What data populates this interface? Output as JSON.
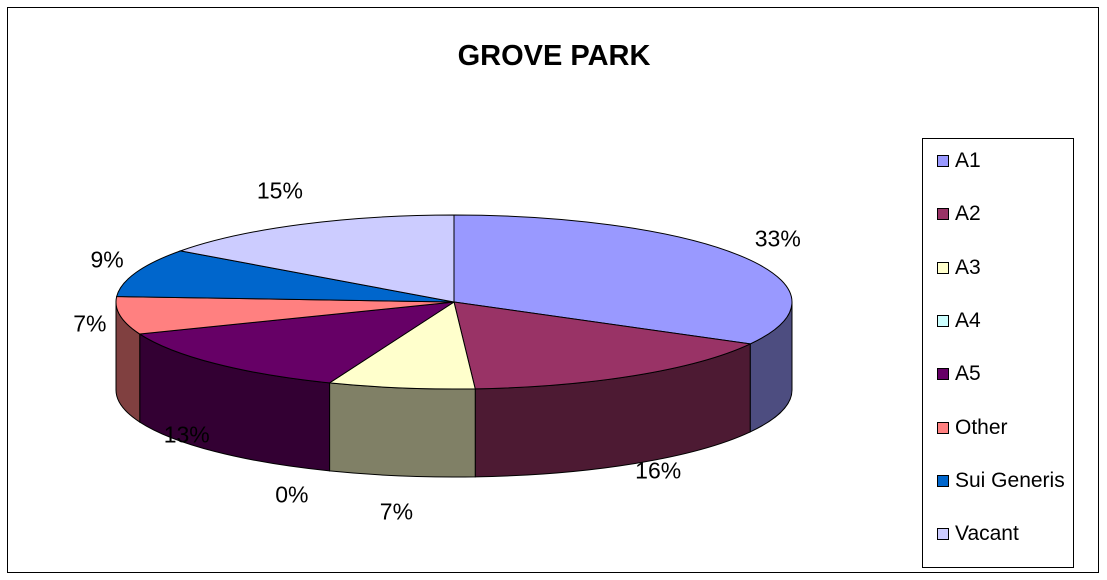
{
  "chart_data": {
    "type": "pie",
    "title": "GROVE PARK",
    "categories": [
      "A1",
      "A2",
      "A3",
      "A4",
      "A5",
      "Other",
      "Sui Generis",
      "Vacant"
    ],
    "values": [
      33,
      16,
      7,
      0,
      13,
      7,
      9,
      15
    ],
    "labels": [
      "33%",
      "16%",
      "7%",
      "0%",
      "13%",
      "7%",
      "9%",
      "15%"
    ],
    "colors": [
      "#9999ff",
      "#993366",
      "#ffffcc",
      "#ccffff",
      "#660066",
      "#ff8080",
      "#0066cc",
      "#ccccff"
    ],
    "legend_position": "right",
    "style": "3d"
  }
}
